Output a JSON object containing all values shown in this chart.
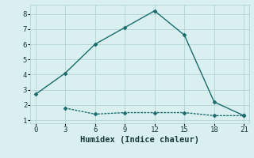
{
  "xlabel": "Humidex (Indice chaleur)",
  "line1_x": [
    0,
    3,
    6,
    9,
    12,
    15,
    18,
    21
  ],
  "line1_y": [
    2.7,
    4.1,
    6.0,
    7.1,
    8.2,
    6.6,
    2.2,
    1.3
  ],
  "line2_x": [
    3,
    6,
    9,
    12,
    15,
    18,
    21
  ],
  "line2_y": [
    1.8,
    1.4,
    1.5,
    1.5,
    1.5,
    1.3,
    1.3
  ],
  "line_color": "#1a6b6b",
  "bg_color": "#daf0f0",
  "grid_color": "#b8d8d8",
  "xlim": [
    -0.5,
    21.5
  ],
  "ylim": [
    0.8,
    8.6
  ],
  "xticks": [
    0,
    3,
    6,
    9,
    12,
    15,
    18,
    21
  ],
  "yticks": [
    1,
    2,
    3,
    4,
    5,
    6,
    7,
    8
  ],
  "marker": "D",
  "markersize": 2.5,
  "linewidth": 1.0,
  "tick_fontsize": 6.5,
  "label_fontsize": 7.5
}
